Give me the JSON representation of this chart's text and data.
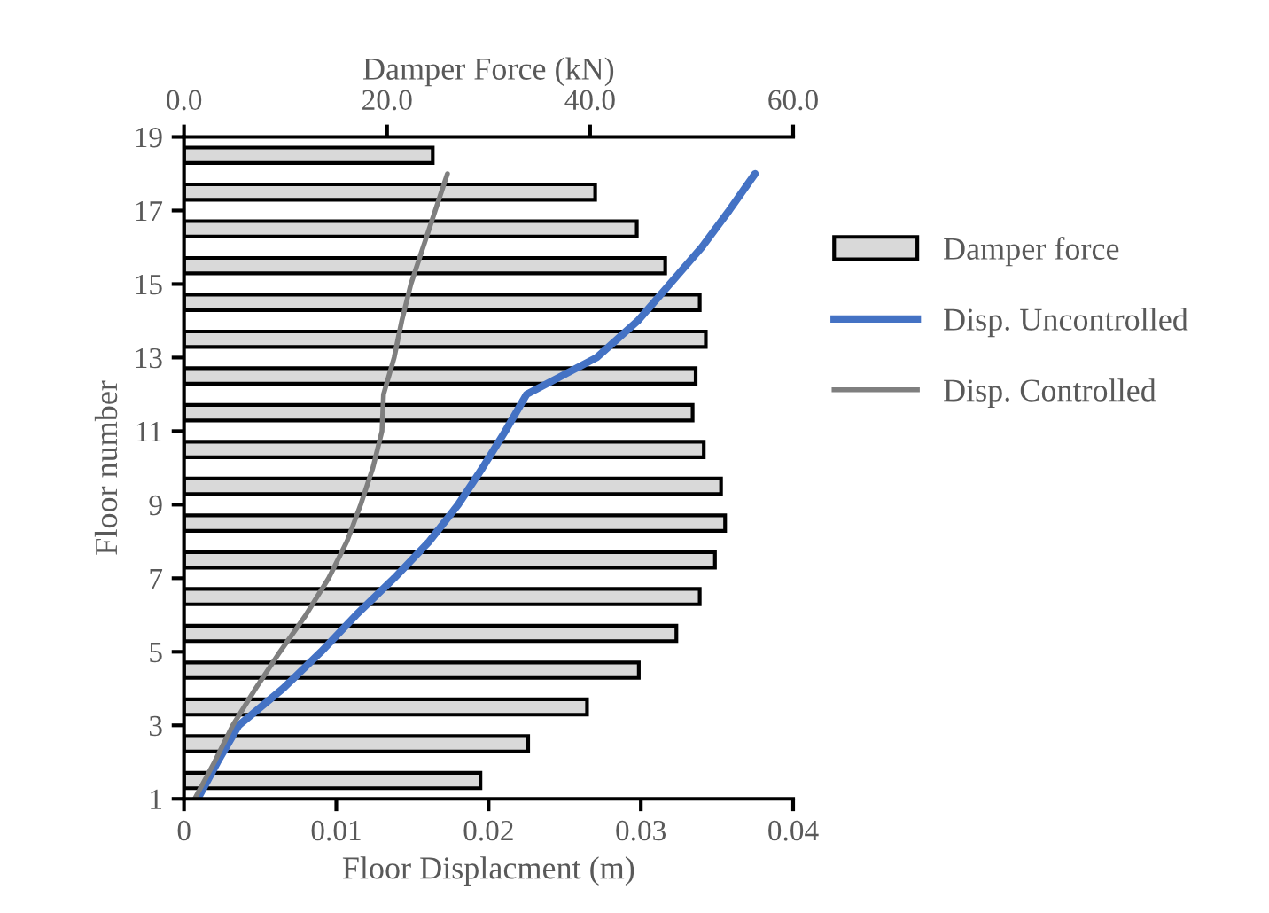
{
  "chart_data": {
    "type": "bar",
    "orientation": "horizontal",
    "xlabel": "Floor Displacment (m)",
    "x2label": "Damper Force (kN)",
    "ylabel": "Floor number",
    "series": [
      {
        "name": "Damper force",
        "axis": "x2",
        "color": "#d9d9d9",
        "x": [
          1.5,
          2.5,
          3.5,
          4.5,
          5.5,
          6.5,
          7.5,
          8.5,
          9.5,
          10.5,
          11.5,
          12.5,
          13.5,
          14.5,
          15.5,
          16.5,
          17.5,
          18.5
        ],
        "values": [
          29.2,
          33.9,
          39.7,
          44.8,
          48.5,
          50.8,
          52.3,
          53.3,
          52.9,
          51.2,
          50.1,
          50.4,
          51.4,
          50.8,
          47.4,
          44.6,
          40.5,
          24.5
        ]
      },
      {
        "name": "Disp. Uncontrolled",
        "type": "line",
        "color": "#4472c4",
        "x": [
          1,
          2,
          3,
          4,
          5,
          6,
          7,
          8,
          9,
          10,
          11,
          12,
          13,
          14,
          15,
          16,
          17,
          18
        ],
        "values": [
          0.0009,
          0.0022,
          0.0036,
          0.0065,
          0.009,
          0.0113,
          0.0138,
          0.0161,
          0.018,
          0.0196,
          0.0211,
          0.0225,
          0.0271,
          0.0298,
          0.0319,
          0.034,
          0.0358,
          0.0375
        ]
      },
      {
        "name": "Disp. Controlled",
        "type": "line",
        "color": "#7f7f7f",
        "x": [
          1,
          2,
          3,
          4,
          5,
          6,
          7,
          8,
          9,
          10,
          11,
          12,
          13,
          14,
          15,
          16,
          17,
          18
        ],
        "values": [
          0.0007,
          0.002,
          0.0032,
          0.0047,
          0.0063,
          0.008,
          0.0095,
          0.0107,
          0.0116,
          0.0124,
          0.013,
          0.0131,
          0.0138,
          0.0143,
          0.0149,
          0.0157,
          0.0165,
          0.0173
        ]
      }
    ],
    "xlim": [
      0,
      0.04
    ],
    "xticks": [
      0,
      0.01,
      0.02,
      0.03,
      0.04
    ],
    "x2lim": [
      0,
      60
    ],
    "x2ticks": [
      {
        "value": 0,
        "label": "0.0"
      },
      {
        "value": 20,
        "label": "20.0"
      },
      {
        "value": 40,
        "label": "40.0"
      },
      {
        "value": 60,
        "label": "60.0"
      }
    ],
    "ylim": [
      1,
      19
    ],
    "yticks": [
      1,
      3,
      5,
      7,
      9,
      11,
      13,
      15,
      17,
      19
    ],
    "grid": false,
    "legend": "right",
    "marker": "none",
    "line_style": "solid"
  }
}
